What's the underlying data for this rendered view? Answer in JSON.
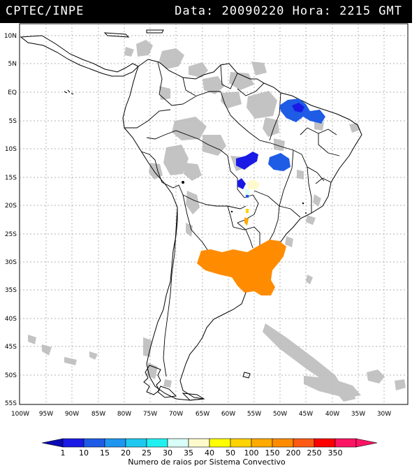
{
  "header": {
    "org": "CPTEC/INPE",
    "data_label": "Data:",
    "date": "20090220",
    "hora_label": "Hora:",
    "time": "2215 GMT"
  },
  "map": {
    "lat_labels": [
      "10N",
      "5N",
      "EQ",
      "5S",
      "10S",
      "15S",
      "20S",
      "25S",
      "30S",
      "35S",
      "40S",
      "45S",
      "50S",
      "55S"
    ],
    "lon_labels": [
      "100W",
      "95W",
      "90W",
      "85W",
      "80W",
      "75W",
      "70W",
      "65W",
      "60W",
      "55W",
      "50W",
      "45W",
      "40W",
      "35W",
      "30W"
    ],
    "cloud_color": "#bdbdbd",
    "coast_color": "#000000"
  },
  "legend": {
    "title": "Numero de raios por Sistema Convectivo",
    "values": [
      "1",
      "10",
      "15",
      "20",
      "25",
      "30",
      "35",
      "40",
      "50",
      "100",
      "150",
      "200",
      "250",
      "350"
    ],
    "colors": [
      "#1a1ae6",
      "#1e5ce6",
      "#1e96f0",
      "#1ec8f0",
      "#22f0f0",
      "#d8fff8",
      "#fffacc",
      "#ffff00",
      "#ffd200",
      "#ffaa00",
      "#ff8c00",
      "#ff5a14",
      "#ff0000",
      "#ff1464"
    ],
    "end_left": "#0a0ab4",
    "end_right": "#ff1464"
  }
}
